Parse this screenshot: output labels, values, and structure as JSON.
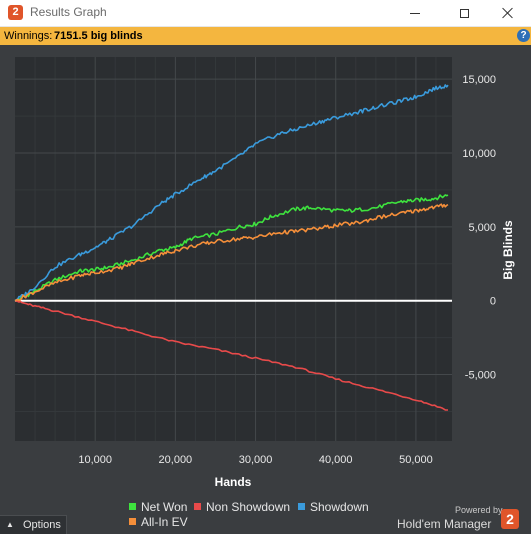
{
  "window": {
    "title": "Results Graph",
    "app_badge": "2"
  },
  "summary": {
    "label": "Winnings:",
    "value": "7151.5 big blinds",
    "help_glyph": "?"
  },
  "chart_data": {
    "type": "line",
    "xlabel": "Hands",
    "ylabel": "Big Blinds",
    "xlim": [
      0,
      54500
    ],
    "ylim": [
      -9500,
      16500
    ],
    "x_ticks": [
      10000,
      20000,
      30000,
      40000,
      50000
    ],
    "x_tick_labels": [
      "10,000",
      "20,000",
      "30,000",
      "40,000",
      "50,000"
    ],
    "y_ticks": [
      -5000,
      0,
      5000,
      10000,
      15000
    ],
    "y_tick_labels": [
      "-5,000",
      "0",
      "5,000",
      "10,000",
      "15,000"
    ],
    "grid": true,
    "y_axis_side": "right",
    "legend_position": "bottom-center",
    "zero_line_color": "#ffffff",
    "series": [
      {
        "name": "Net Won",
        "color": "#3ee33e",
        "x": [
          0,
          2000,
          5000,
          8000,
          10000,
          12000,
          15000,
          18000,
          20000,
          22000,
          25000,
          28000,
          30000,
          32000,
          35000,
          37000,
          40000,
          42000,
          45000,
          48000,
          50000,
          52000,
          54000
        ],
        "y": [
          0,
          500,
          1400,
          2000,
          2100,
          2300,
          2800,
          3400,
          3600,
          4200,
          4500,
          5000,
          5200,
          5700,
          6200,
          6300,
          6100,
          6100,
          6300,
          6700,
          6800,
          6900,
          7150
        ]
      },
      {
        "name": "Non Showdown",
        "color": "#e84a4a",
        "x": [
          0,
          2000,
          5000,
          10000,
          15000,
          20000,
          25000,
          30000,
          35000,
          40000,
          45000,
          50000,
          54000
        ],
        "y": [
          0,
          -300,
          -700,
          -1400,
          -2100,
          -2800,
          -3300,
          -3900,
          -4500,
          -5300,
          -6000,
          -6700,
          -7400
        ]
      },
      {
        "name": "Showdown",
        "color": "#3a9bdc",
        "x": [
          0,
          2000,
          5000,
          8000,
          10000,
          12000,
          15000,
          18000,
          20000,
          23000,
          25000,
          28000,
          30000,
          33000,
          35000,
          38000,
          40000,
          43000,
          45000,
          48000,
          50000,
          52000,
          54000
        ],
        "y": [
          0,
          700,
          2300,
          3100,
          3600,
          4200,
          5200,
          6500,
          7200,
          8200,
          8800,
          9800,
          10600,
          11300,
          11600,
          12100,
          12400,
          12800,
          13100,
          13500,
          13800,
          14300,
          14600
        ]
      },
      {
        "name": "All-In EV",
        "color": "#f58f3a",
        "x": [
          0,
          2000,
          5000,
          8000,
          10000,
          13000,
          15000,
          18000,
          20000,
          23000,
          25000,
          28000,
          30000,
          33000,
          35000,
          38000,
          40000,
          43000,
          45000,
          48000,
          50000,
          52000,
          54000
        ],
        "y": [
          0,
          500,
          1200,
          1700,
          1900,
          2200,
          2600,
          3100,
          3400,
          3800,
          4000,
          4200,
          4300,
          4600,
          4700,
          4900,
          5100,
          5300,
          5600,
          5900,
          6100,
          6300,
          6500
        ]
      }
    ]
  },
  "legend": [
    {
      "label": "Net Won",
      "color": "#3ee33e"
    },
    {
      "label": "Non Showdown",
      "color": "#e84a4a"
    },
    {
      "label": "Showdown",
      "color": "#3a9bdc"
    },
    {
      "label": "All-In EV",
      "color": "#f58f3a"
    }
  ],
  "footer": {
    "options_label": "Options",
    "powered_by": "Powered by",
    "brand": "Hold'em Manager",
    "brand_badge": "2"
  }
}
